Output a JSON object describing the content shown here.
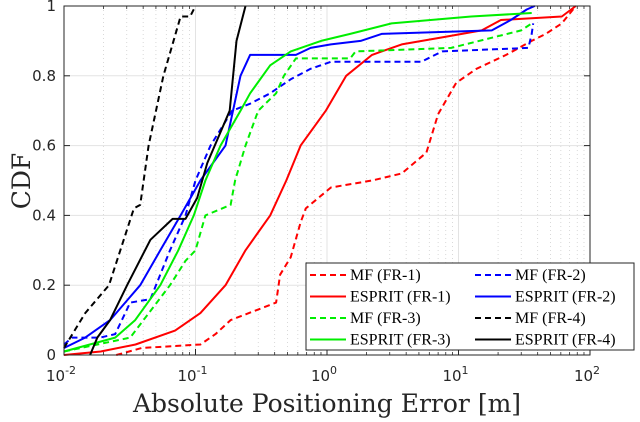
{
  "chart_data": {
    "type": "line",
    "title": "",
    "xlabel": "Absolute Positioning Error [m]",
    "ylabel": "CDF",
    "xscale": "log",
    "xlim": [
      0.01,
      100
    ],
    "ylim": [
      0,
      1
    ],
    "xticks": [
      0.01,
      0.1,
      1,
      10,
      100
    ],
    "xtick_labels": [
      [
        "10",
        "-2"
      ],
      [
        "10",
        "-1"
      ],
      [
        "10",
        "0"
      ],
      [
        "10",
        "1"
      ],
      [
        "10",
        "2"
      ]
    ],
    "yticks": [
      0,
      0.2,
      0.4,
      0.6,
      0.8,
      1
    ],
    "ytick_labels": [
      "0",
      "0.2",
      "0.4",
      "0.6",
      "0.8",
      "1"
    ],
    "grid": true,
    "legend_placement": "bottom-right",
    "series": [
      {
        "name": "MF (FR-1)",
        "color": "#ff0000",
        "dash": true,
        "points": [
          [
            0.025,
            0
          ],
          [
            0.039,
            0.02
          ],
          [
            0.109,
            0.03
          ],
          [
            0.142,
            0.06
          ],
          [
            0.185,
            0.1
          ],
          [
            0.41,
            0.15
          ],
          [
            0.44,
            0.23
          ],
          [
            0.53,
            0.28
          ],
          [
            0.63,
            0.38
          ],
          [
            0.69,
            0.42
          ],
          [
            1.07,
            0.48
          ],
          [
            2.2,
            0.5
          ],
          [
            3.7,
            0.52
          ],
          [
            5.7,
            0.58
          ],
          [
            7.0,
            0.69
          ],
          [
            9.6,
            0.78
          ],
          [
            13.7,
            0.82
          ],
          [
            23,
            0.86
          ],
          [
            36,
            0.9
          ],
          [
            46,
            0.92
          ],
          [
            61,
            0.95
          ],
          [
            78,
            1
          ]
        ]
      },
      {
        "name": "ESPRIT (FR-1)",
        "color": "#ff0000",
        "dash": false,
        "points": [
          [
            0.01,
            0
          ],
          [
            0.019,
            0.01
          ],
          [
            0.035,
            0.03
          ],
          [
            0.07,
            0.07
          ],
          [
            0.109,
            0.12
          ],
          [
            0.169,
            0.2
          ],
          [
            0.24,
            0.3
          ],
          [
            0.37,
            0.4
          ],
          [
            0.49,
            0.5
          ],
          [
            0.63,
            0.6
          ],
          [
            0.98,
            0.7
          ],
          [
            1.4,
            0.8
          ],
          [
            2.2,
            0.86
          ],
          [
            3.7,
            0.89
          ],
          [
            7.5,
            0.91
          ],
          [
            15,
            0.93
          ],
          [
            21,
            0.96
          ],
          [
            61,
            0.97
          ],
          [
            78,
            1
          ]
        ]
      },
      {
        "name": "MF (FR-2)",
        "color": "#0000ff",
        "dash": true,
        "points": [
          [
            0.01,
            0.03
          ],
          [
            0.0115,
            0.05
          ],
          [
            0.0188,
            0.05
          ],
          [
            0.0245,
            0.06
          ],
          [
            0.0319,
            0.15
          ],
          [
            0.0454,
            0.16
          ],
          [
            0.064,
            0.3
          ],
          [
            0.084,
            0.4
          ],
          [
            0.1,
            0.5
          ],
          [
            0.13,
            0.6
          ],
          [
            0.19,
            0.7
          ],
          [
            0.26,
            0.72
          ],
          [
            0.37,
            0.75
          ],
          [
            0.53,
            0.79
          ],
          [
            0.75,
            0.82
          ],
          [
            1.07,
            0.84
          ],
          [
            5.2,
            0.84
          ],
          [
            7.5,
            0.87
          ],
          [
            34,
            0.88
          ],
          [
            36,
            0.92
          ],
          [
            37,
            0.95
          ]
        ]
      },
      {
        "name": "ESPRIT (FR-2)",
        "color": "#0000ff",
        "dash": false,
        "points": [
          [
            0.01,
            0.02
          ],
          [
            0.0145,
            0.05
          ],
          [
            0.0224,
            0.1
          ],
          [
            0.038,
            0.2
          ],
          [
            0.054,
            0.3
          ],
          [
            0.077,
            0.4
          ],
          [
            0.109,
            0.5
          ],
          [
            0.169,
            0.6
          ],
          [
            0.22,
            0.8
          ],
          [
            0.26,
            0.86
          ],
          [
            0.58,
            0.86
          ],
          [
            0.75,
            0.88
          ],
          [
            1.07,
            0.89
          ],
          [
            1.8,
            0.9
          ],
          [
            2.6,
            0.92
          ],
          [
            17.9,
            0.93
          ],
          [
            25,
            0.96
          ],
          [
            33,
            0.99
          ],
          [
            38,
            1
          ]
        ]
      },
      {
        "name": "MF (FR-3)",
        "color": "#00ee00",
        "dash": true,
        "points": [
          [
            0.01,
            0.01
          ],
          [
            0.0319,
            0.05
          ],
          [
            0.064,
            0.2
          ],
          [
            0.084,
            0.27
          ],
          [
            0.1,
            0.3
          ],
          [
            0.119,
            0.4
          ],
          [
            0.185,
            0.43
          ],
          [
            0.2,
            0.5
          ],
          [
            0.24,
            0.6
          ],
          [
            0.3,
            0.7
          ],
          [
            0.41,
            0.75
          ],
          [
            0.47,
            0.8
          ],
          [
            0.58,
            0.85
          ],
          [
            1.5,
            0.85
          ],
          [
            1.65,
            0.87
          ],
          [
            8.8,
            0.88
          ],
          [
            30,
            0.93
          ],
          [
            36,
            0.95
          ]
        ]
      },
      {
        "name": "ESPRIT (FR-3)",
        "color": "#00ee00",
        "dash": false,
        "points": [
          [
            0.01,
            0.01
          ],
          [
            0.0245,
            0.05
          ],
          [
            0.0348,
            0.1
          ],
          [
            0.054,
            0.2
          ],
          [
            0.074,
            0.3
          ],
          [
            0.097,
            0.4
          ],
          [
            0.119,
            0.5
          ],
          [
            0.155,
            0.6
          ],
          [
            0.22,
            0.7
          ],
          [
            0.26,
            0.75
          ],
          [
            0.37,
            0.83
          ],
          [
            0.53,
            0.87
          ],
          [
            0.9,
            0.9
          ],
          [
            1.5,
            0.92
          ],
          [
            3.1,
            0.95
          ],
          [
            12.5,
            0.97
          ],
          [
            36,
            0.98
          ]
        ]
      },
      {
        "name": "MF (FR-4)",
        "color": "#000000",
        "dash": true,
        "points": [
          [
            0.01,
            0.02
          ],
          [
            0.0145,
            0.12
          ],
          [
            0.022,
            0.2
          ],
          [
            0.034,
            0.42
          ],
          [
            0.038,
            0.43
          ],
          [
            0.044,
            0.6
          ],
          [
            0.057,
            0.8
          ],
          [
            0.077,
            0.97
          ],
          [
            0.091,
            0.97
          ],
          [
            0.1,
            1
          ]
        ]
      },
      {
        "name": "ESPRIT (FR-4)",
        "color": "#000000",
        "dash": false,
        "points": [
          [
            0.0158,
            0
          ],
          [
            0.0179,
            0.05
          ],
          [
            0.0224,
            0.1
          ],
          [
            0.0302,
            0.2
          ],
          [
            0.0454,
            0.33
          ],
          [
            0.067,
            0.39
          ],
          [
            0.084,
            0.39
          ],
          [
            0.103,
            0.45
          ],
          [
            0.123,
            0.55
          ],
          [
            0.182,
            0.7
          ],
          [
            0.205,
            0.9
          ],
          [
            0.24,
            1
          ]
        ]
      }
    ]
  }
}
